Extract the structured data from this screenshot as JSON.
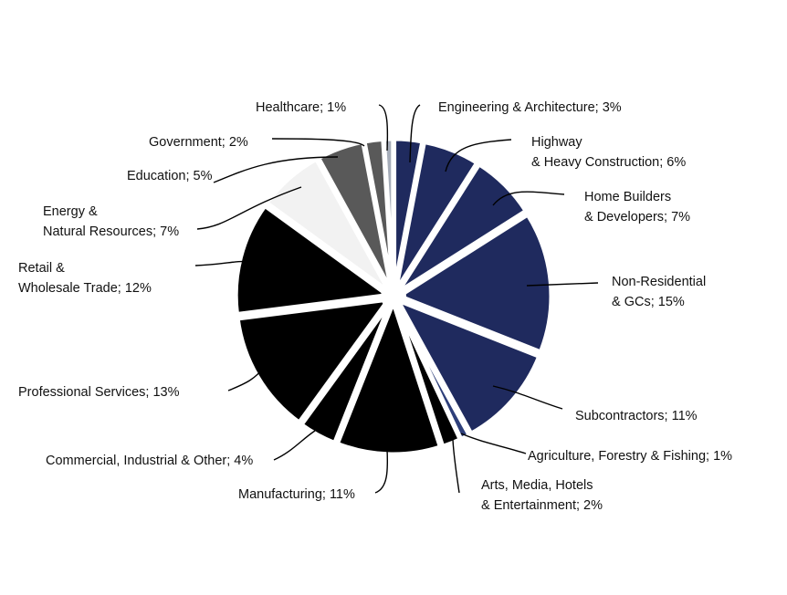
{
  "chart_data": {
    "type": "pie",
    "title": "",
    "slices": [
      {
        "name": "Engineering & Architecture",
        "value": 3,
        "label_lines": [
          "Engineering & Architecture; 3%"
        ],
        "color": "#1f2a5e"
      },
      {
        "name": "Highway & Heavy Construction",
        "value": 6,
        "label_lines": [
          "Highway",
          "& Heavy Construction; 6%"
        ],
        "color": "#1f2a5e"
      },
      {
        "name": "Home Builders & Developers",
        "value": 7,
        "label_lines": [
          "Home Builders",
          "& Developers; 7%"
        ],
        "color": "#1f2a5e"
      },
      {
        "name": "Non-Residential & GCs",
        "value": 15,
        "label_lines": [
          "Non-Residential",
          "& GCs; 15%"
        ],
        "color": "#1f2a5e"
      },
      {
        "name": "Subcontractors",
        "value": 11,
        "label_lines": [
          "Subcontractors; 11%"
        ],
        "color": "#1f2a5e"
      },
      {
        "name": "Agriculture, Forestry & Fishing",
        "value": 1,
        "label_lines": [
          "Agriculture, Forestry & Fishing; 1%"
        ],
        "color": "#2e3f7a"
      },
      {
        "name": "Arts, Media, Hotels & Entertainment",
        "value": 2,
        "label_lines": [
          "Arts, Media, Hotels",
          "& Entertainment; 2%"
        ],
        "color": "#000000"
      },
      {
        "name": "Manufacturing",
        "value": 11,
        "label_lines": [
          "Manufacturing; 11%"
        ],
        "color": "#000000"
      },
      {
        "name": "Commercial, Industrial & Other",
        "value": 4,
        "label_lines": [
          "Commercial, Industrial & Other; 4%"
        ],
        "color": "#000000"
      },
      {
        "name": "Professional Services",
        "value": 13,
        "label_lines": [
          "Professional Services; 13%"
        ],
        "color": "#000000"
      },
      {
        "name": "Retail & Wholesale Trade",
        "value": 12,
        "label_lines": [
          "Retail &",
          "Wholesale Trade; 12%"
        ],
        "color": "#000000"
      },
      {
        "name": "Energy & Natural Resources",
        "value": 7,
        "label_lines": [
          "Energy &",
          "Natural Resources; 7%"
        ],
        "color": "#f2f2f2"
      },
      {
        "name": "Education",
        "value": 5,
        "label_lines": [
          "Education; 5%"
        ],
        "color": "#595959"
      },
      {
        "name": "Government",
        "value": 2,
        "label_lines": [
          "Government; 2%"
        ],
        "color": "#595959"
      },
      {
        "name": "Healthcare",
        "value": 1,
        "label_lines": [
          "Healthcare; 1%"
        ],
        "color": "#a6adb9"
      }
    ]
  }
}
